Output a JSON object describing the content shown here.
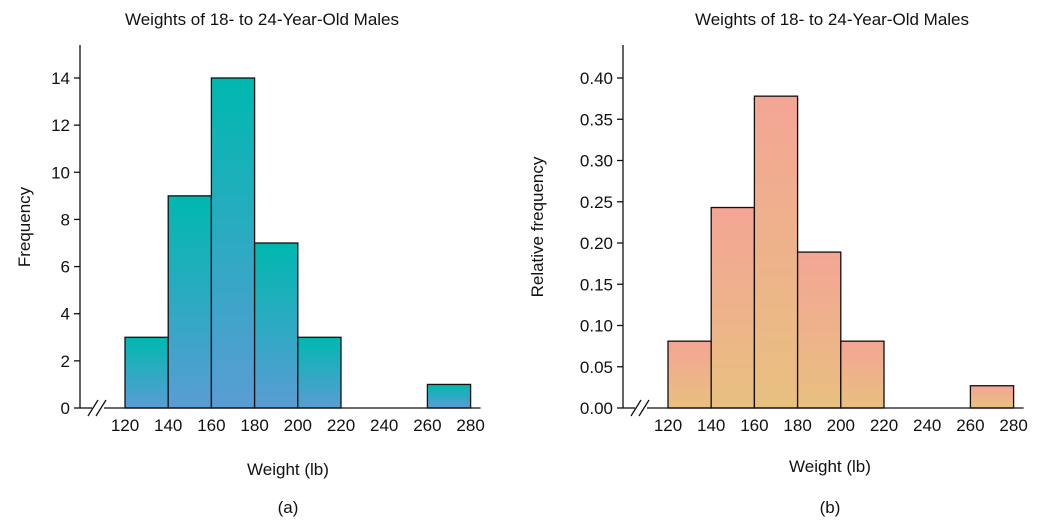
{
  "chart_data": [
    {
      "type": "bar",
      "histogram": true,
      "panel_label": "(a)",
      "title": "Weights of 18- to 24-Year-Old Males",
      "xlabel": "Weight (lb)",
      "ylabel": "Frequency",
      "x_ticks": [
        "120",
        "140",
        "160",
        "180",
        "200",
        "220",
        "240",
        "260",
        "280"
      ],
      "y_ticks": [
        "0",
        "2",
        "4",
        "6",
        "8",
        "10",
        "12",
        "14"
      ],
      "xlim": [
        120,
        280
      ],
      "ylim": [
        0,
        14
      ],
      "axis_break": true,
      "bins": [
        [
          120,
          140
        ],
        [
          140,
          160
        ],
        [
          160,
          180
        ],
        [
          180,
          200
        ],
        [
          200,
          220
        ],
        [
          260,
          280
        ]
      ],
      "values": [
        3,
        9,
        14,
        7,
        3,
        1
      ],
      "fill_gradient": [
        "#00b8b0",
        "#5a9cd4"
      ],
      "grid": false
    },
    {
      "type": "bar",
      "histogram": true,
      "panel_label": "(b)",
      "title": "Weights of 18- to 24-Year-Old Males",
      "xlabel": "Weight (lb)",
      "ylabel": "Relative frequency",
      "x_ticks": [
        "120",
        "140",
        "160",
        "180",
        "200",
        "220",
        "240",
        "260",
        "280"
      ],
      "y_ticks": [
        "0.00",
        "0.05",
        "0.10",
        "0.15",
        "0.20",
        "0.25",
        "0.30",
        "0.35",
        "0.40"
      ],
      "xlim": [
        120,
        280
      ],
      "ylim": [
        0,
        0.4
      ],
      "axis_break": true,
      "bins": [
        [
          120,
          140
        ],
        [
          140,
          160
        ],
        [
          160,
          180
        ],
        [
          180,
          200
        ],
        [
          200,
          220
        ],
        [
          260,
          280
        ]
      ],
      "values": [
        0.081,
        0.243,
        0.378,
        0.189,
        0.081,
        0.027
      ],
      "fill_gradient": [
        "#f4a595",
        "#e8c080"
      ],
      "grid": false
    }
  ]
}
